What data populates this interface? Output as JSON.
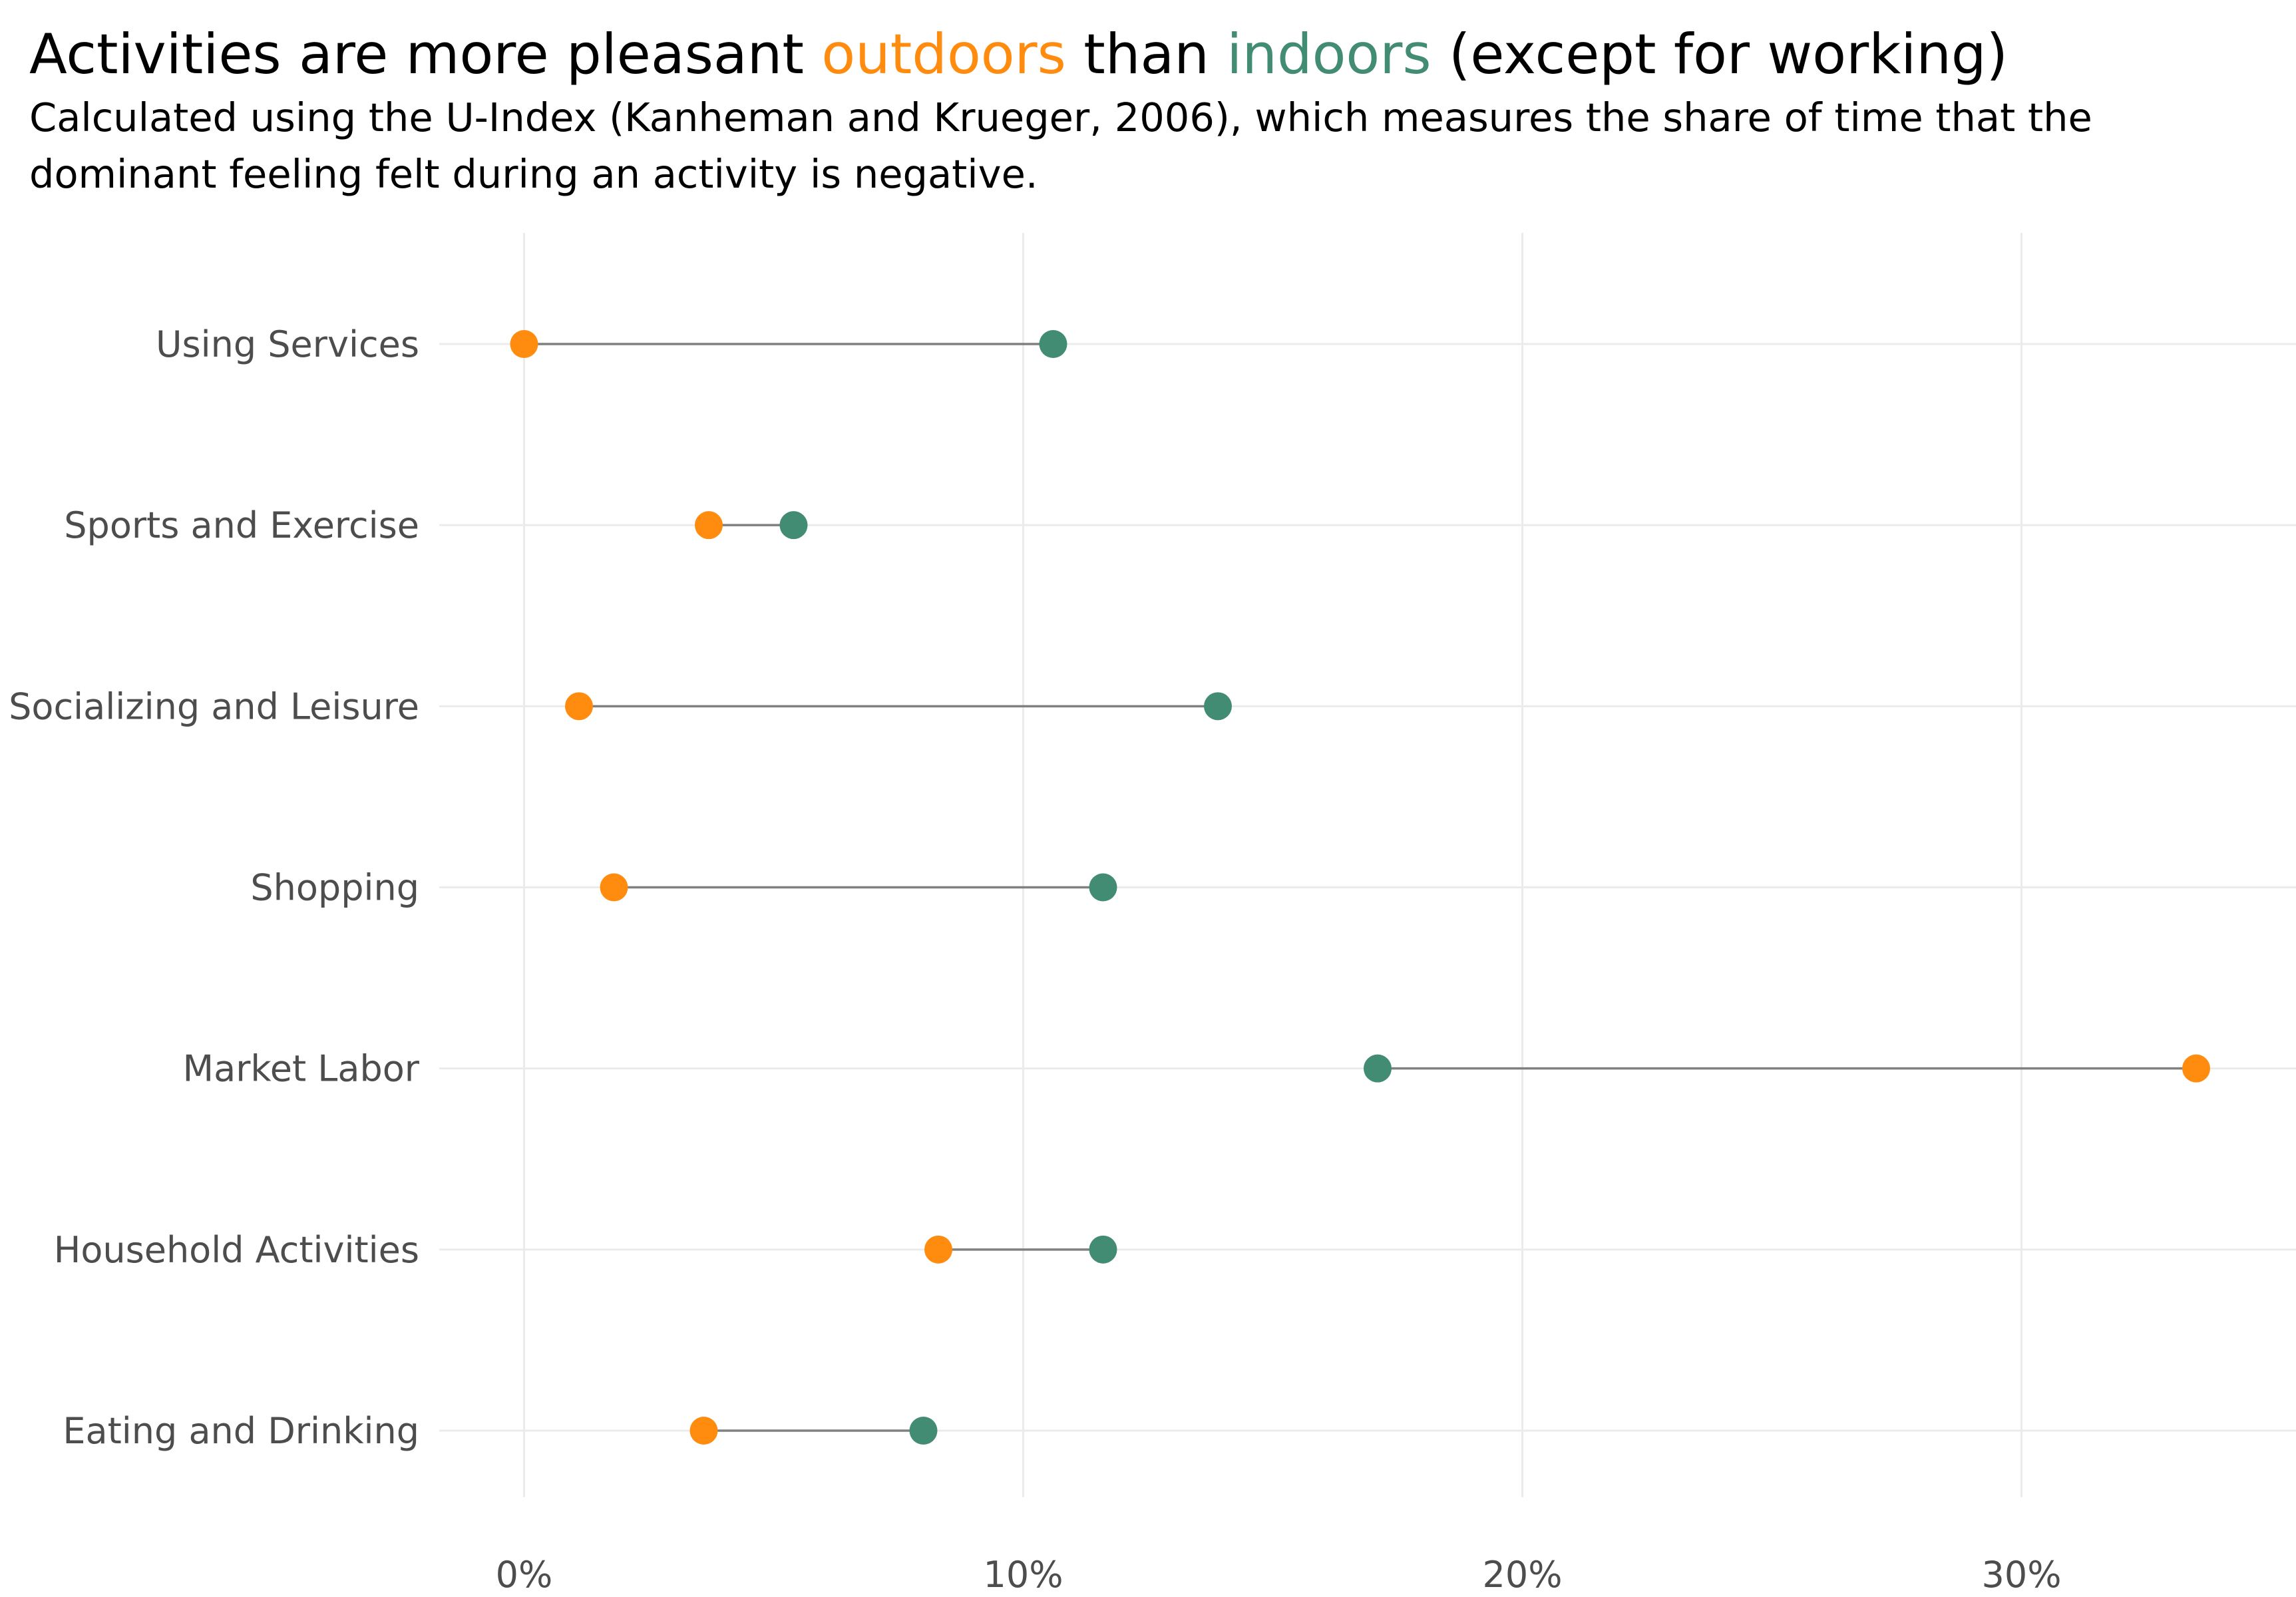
{
  "chart_data": {
    "type": "dumbbell",
    "title": {
      "part1": "Activities are more pleasant ",
      "outdoors": "outdoors",
      "part2": " than ",
      "indoors": "indoors",
      "part3": " (except for working)"
    },
    "subtitle": [
      "Calculated using the U-Index (Kanheman and Krueger, 2006), which measures the share of time that the",
      "dominant feeling felt during an activity is negative."
    ],
    "categories": [
      "Using Services",
      "Sports and Exercise",
      "Socializing and Leisure",
      "Shopping",
      "Market Labor",
      "Household Activities",
      "Eating and Drinking"
    ],
    "series": [
      {
        "name": "outdoors",
        "color": "#ff8c0f",
        "values": [
          0.0,
          3.7,
          1.1,
          1.8,
          33.5,
          8.3,
          3.6
        ]
      },
      {
        "name": "indoors",
        "color": "#438c74",
        "values": [
          10.6,
          5.4,
          13.9,
          11.6,
          17.1,
          11.6,
          8.0
        ]
      }
    ],
    "x_ticks": [
      0,
      10,
      20,
      30
    ],
    "x_tick_labels": [
      "0%",
      "10%",
      "20%",
      "30%"
    ],
    "xlim": [
      -1.7,
      35.5
    ],
    "grid": true,
    "colors": {
      "grid": "#ebebeb",
      "segment": "#808080",
      "label": "#4d4d4d",
      "title": "#000000"
    }
  }
}
